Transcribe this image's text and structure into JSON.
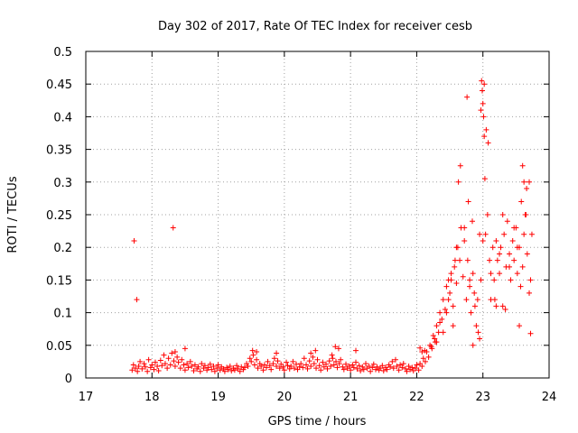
{
  "chart_data": {
    "type": "scatter",
    "title": "Day 302 of 2017, Rate Of TEC Index for receiver cesb",
    "xlabel": "GPS time / hours",
    "ylabel": "ROTI / TECUs",
    "xlim": [
      17,
      24
    ],
    "ylim": [
      0,
      0.5
    ],
    "xticks": [
      "17",
      "18",
      "19",
      "20",
      "21",
      "22",
      "23",
      "24"
    ],
    "yticks": [
      "0",
      "0.05",
      "0.1",
      "0.15",
      "0.2",
      "0.25",
      "0.3",
      "0.35",
      "0.4",
      "0.45",
      "0.5"
    ],
    "grid": true,
    "marker": "+",
    "color": "#ff0000",
    "series": [
      {
        "name": "ROTI",
        "x": [
          17.7,
          17.72,
          17.75,
          17.78,
          17.8,
          17.82,
          17.85,
          17.88,
          17.9,
          17.93,
          17.95,
          17.98,
          18.0,
          18.03,
          18.05,
          18.08,
          18.1,
          18.13,
          18.15,
          18.18,
          18.2,
          18.23,
          18.25,
          18.28,
          18.3,
          18.33,
          18.35,
          18.38,
          18.4,
          18.43,
          18.45,
          18.48,
          18.5,
          18.53,
          18.55,
          18.58,
          18.6,
          18.63,
          18.65,
          18.68,
          18.7,
          18.73,
          18.75,
          18.78,
          18.8,
          18.83,
          18.85,
          18.88,
          18.9,
          18.93,
          18.95,
          18.98,
          19.0,
          19.03,
          19.05,
          19.08,
          19.1,
          19.13,
          19.15,
          19.18,
          19.2,
          19.23,
          19.25,
          19.28,
          19.3,
          19.33,
          19.35,
          19.38,
          19.4,
          19.43,
          19.45,
          19.48,
          19.5,
          19.53,
          19.55,
          19.58,
          19.6,
          19.63,
          19.65,
          19.68,
          19.7,
          19.73,
          19.75,
          19.78,
          19.8,
          19.83,
          19.85,
          19.88,
          19.9,
          19.93,
          19.95,
          19.98,
          20.0,
          20.03,
          20.05,
          20.08,
          20.1,
          20.13,
          20.15,
          20.18,
          20.2,
          20.23,
          20.25,
          20.28,
          20.3,
          20.33,
          20.35,
          20.38,
          20.4,
          20.43,
          20.45,
          20.48,
          20.5,
          20.53,
          20.55,
          20.58,
          20.6,
          20.63,
          20.65,
          20.68,
          20.7,
          20.73,
          20.75,
          20.78,
          20.8,
          20.83,
          20.85,
          20.88,
          20.9,
          20.93,
          20.95,
          20.98,
          21.0,
          21.03,
          21.05,
          21.08,
          21.1,
          21.13,
          21.15,
          21.18,
          21.2,
          21.23,
          21.25,
          21.28,
          21.3,
          21.33,
          21.35,
          21.38,
          21.4,
          21.43,
          21.45,
          21.48,
          21.5,
          21.53,
          21.55,
          21.58,
          21.6,
          21.63,
          21.65,
          21.68,
          21.7,
          21.73,
          21.75,
          21.78,
          21.8,
          21.83,
          21.85,
          21.88,
          21.9,
          21.93,
          21.95,
          21.98,
          22.0,
          22.03,
          22.05,
          22.08,
          22.1,
          22.13,
          22.15,
          22.18,
          22.2,
          22.23,
          22.25,
          22.28,
          22.3,
          22.33,
          22.35,
          22.38,
          22.4,
          22.43,
          22.45,
          22.48,
          22.5,
          22.52,
          22.55,
          22.57,
          22.6,
          22.62,
          22.65,
          22.67,
          22.7,
          22.72,
          22.75,
          22.77,
          22.8,
          22.82,
          22.85,
          22.87,
          22.9,
          22.92,
          22.95,
          22.97,
          23.0,
          23.02,
          23.05,
          23.07,
          23.1,
          23.12,
          23.15,
          23.17,
          23.2,
          23.22,
          23.25,
          23.27,
          23.3,
          23.32,
          23.35,
          23.37,
          23.4,
          23.42,
          23.45,
          23.47,
          23.5,
          23.52,
          23.55,
          23.57,
          23.6,
          23.62,
          23.65,
          23.67,
          23.7,
          23.72,
          17.73,
          17.77,
          18.32,
          18.35,
          18.5,
          19.52,
          19.58,
          19.88,
          20.4,
          20.47,
          20.72,
          20.77,
          20.82,
          21.08,
          22.05,
          22.08,
          22.12,
          22.22,
          22.27,
          22.3,
          22.35,
          22.4,
          22.45,
          22.48,
          22.52,
          22.58,
          22.6,
          22.63,
          22.66,
          22.72,
          22.76,
          22.78,
          22.8,
          22.84,
          22.88,
          22.93,
          22.95,
          22.97,
          22.98,
          22.99,
          23.0,
          23.01,
          23.02,
          23.03,
          23.04,
          23.08,
          23.12,
          23.18,
          23.25,
          23.3,
          23.34,
          23.4,
          23.47,
          23.52,
          23.58,
          23.6,
          23.62,
          23.64,
          23.66,
          23.7,
          23.72,
          23.74,
          22.85,
          22.55,
          23.2,
          23.55
        ],
        "y": [
          0.012,
          0.02,
          0.015,
          0.01,
          0.018,
          0.025,
          0.014,
          0.022,
          0.017,
          0.01,
          0.028,
          0.016,
          0.02,
          0.013,
          0.024,
          0.018,
          0.011,
          0.027,
          0.019,
          0.035,
          0.022,
          0.015,
          0.03,
          0.02,
          0.038,
          0.026,
          0.018,
          0.032,
          0.024,
          0.015,
          0.028,
          0.02,
          0.012,
          0.022,
          0.016,
          0.025,
          0.018,
          0.011,
          0.02,
          0.014,
          0.017,
          0.01,
          0.022,
          0.015,
          0.019,
          0.012,
          0.016,
          0.021,
          0.013,
          0.018,
          0.01,
          0.015,
          0.02,
          0.012,
          0.017,
          0.014,
          0.01,
          0.016,
          0.013,
          0.018,
          0.011,
          0.015,
          0.012,
          0.019,
          0.014,
          0.01,
          0.017,
          0.013,
          0.016,
          0.022,
          0.018,
          0.03,
          0.025,
          0.035,
          0.02,
          0.028,
          0.015,
          0.022,
          0.018,
          0.012,
          0.02,
          0.016,
          0.025,
          0.019,
          0.013,
          0.022,
          0.03,
          0.018,
          0.026,
          0.015,
          0.021,
          0.017,
          0.012,
          0.024,
          0.019,
          0.014,
          0.018,
          0.025,
          0.015,
          0.021,
          0.013,
          0.017,
          0.022,
          0.016,
          0.03,
          0.02,
          0.014,
          0.026,
          0.018,
          0.032,
          0.022,
          0.015,
          0.028,
          0.019,
          0.012,
          0.024,
          0.017,
          0.021,
          0.014,
          0.026,
          0.018,
          0.03,
          0.02,
          0.025,
          0.016,
          0.022,
          0.028,
          0.017,
          0.013,
          0.021,
          0.015,
          0.018,
          0.012,
          0.02,
          0.016,
          0.024,
          0.014,
          0.019,
          0.011,
          0.017,
          0.013,
          0.022,
          0.015,
          0.018,
          0.01,
          0.016,
          0.021,
          0.013,
          0.017,
          0.012,
          0.015,
          0.019,
          0.011,
          0.016,
          0.013,
          0.02,
          0.017,
          0.025,
          0.015,
          0.028,
          0.018,
          0.012,
          0.02,
          0.016,
          0.022,
          0.014,
          0.01,
          0.018,
          0.013,
          0.016,
          0.011,
          0.015,
          0.02,
          0.012,
          0.022,
          0.018,
          0.03,
          0.025,
          0.04,
          0.032,
          0.05,
          0.045,
          0.065,
          0.055,
          0.08,
          0.07,
          0.1,
          0.09,
          0.12,
          0.105,
          0.14,
          0.15,
          0.13,
          0.16,
          0.11,
          0.17,
          0.145,
          0.2,
          0.18,
          0.23,
          0.155,
          0.21,
          0.12,
          0.18,
          0.14,
          0.1,
          0.16,
          0.13,
          0.08,
          0.12,
          0.06,
          0.15,
          0.21,
          0.45,
          0.38,
          0.25,
          0.18,
          0.12,
          0.2,
          0.15,
          0.21,
          0.18,
          0.16,
          0.2,
          0.11,
          0.22,
          0.17,
          0.24,
          0.19,
          0.15,
          0.21,
          0.18,
          0.23,
          0.16,
          0.2,
          0.14,
          0.17,
          0.22,
          0.25,
          0.19,
          0.3,
          0.15,
          0.21,
          0.12,
          0.23,
          0.04,
          0.045,
          0.042,
          0.04,
          0.038,
          0.038,
          0.042,
          0.035,
          0.048,
          0.045,
          0.042,
          0.046,
          0.04,
          0.042,
          0.048,
          0.06,
          0.055,
          0.085,
          0.07,
          0.1,
          0.12,
          0.15,
          0.18,
          0.2,
          0.3,
          0.325,
          0.23,
          0.43,
          0.27,
          0.15,
          0.24,
          0.11,
          0.07,
          0.22,
          0.41,
          0.455,
          0.44,
          0.42,
          0.4,
          0.37,
          0.305,
          0.22,
          0.36,
          0.16,
          0.12,
          0.19,
          0.25,
          0.105,
          0.17,
          0.23,
          0.2,
          0.27,
          0.325,
          0.3,
          0.25,
          0.29,
          0.13,
          0.068,
          0.22,
          0.05,
          0.08,
          0.11,
          0.08
        ]
      }
    ]
  }
}
